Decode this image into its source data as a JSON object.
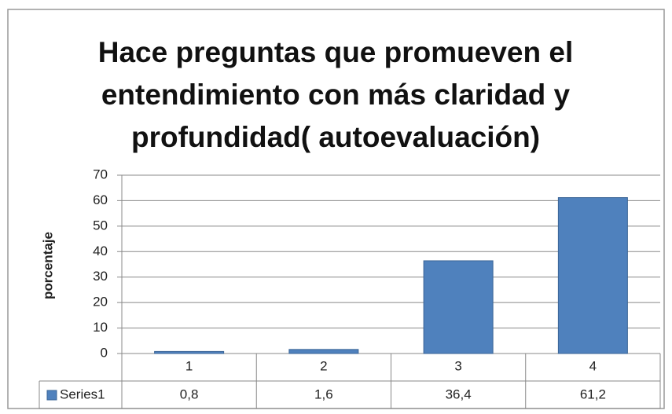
{
  "chart_data": {
    "type": "bar",
    "title": "Hace preguntas que promueven el entendimiento con más claridad y profundidad( autoevaluación)",
    "y_label": "porcentaje",
    "categories": [
      "1",
      "2",
      "3",
      "4"
    ],
    "series": [
      {
        "name": "Series1",
        "color": "#4f81bd",
        "values": [
          0.8,
          1.6,
          36.4,
          61.2
        ],
        "value_labels": [
          "0,8",
          "1,6",
          "36,4",
          "61,2"
        ]
      }
    ],
    "ylim": [
      0,
      70
    ],
    "yticks": [
      0,
      10,
      20,
      30,
      40,
      50,
      60,
      70
    ],
    "grid": true,
    "data_table": true
  }
}
